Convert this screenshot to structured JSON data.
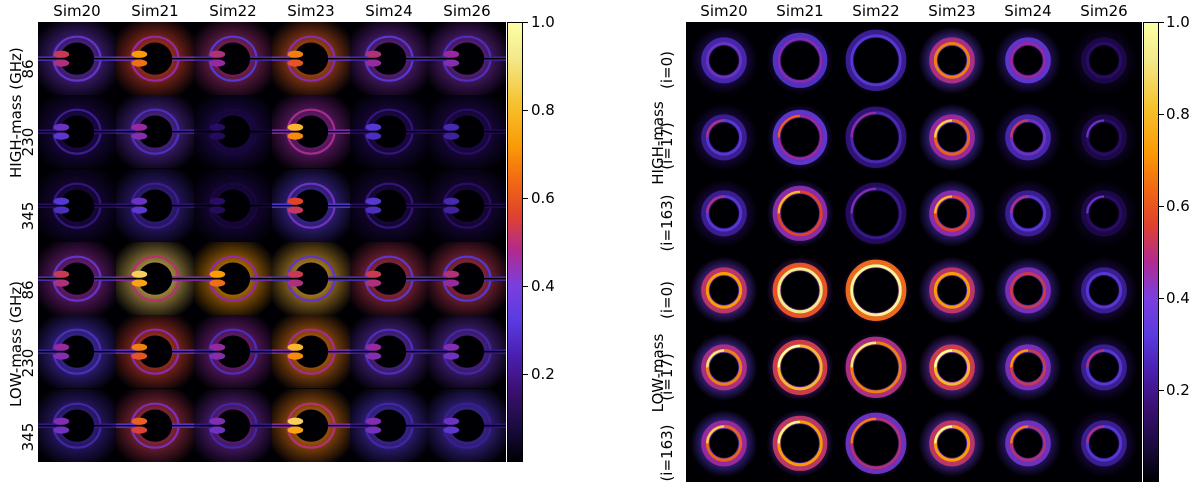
{
  "figure": {
    "left_panel": {
      "columns": [
        "Sim20",
        "Sim21",
        "Sim22",
        "Sim23",
        "Sim24",
        "Sim26"
      ],
      "row_frequencies": [
        "86",
        "230",
        "345",
        "86",
        "230",
        "345"
      ],
      "group_labels": [
        "HIGH-mass (GHz)",
        "LOW-mass (GHz)"
      ],
      "style": "edge-on"
    },
    "right_panel": {
      "columns": [
        "Sim20",
        "Sim21",
        "Sim22",
        "Sim23",
        "Sim24",
        "Sim26"
      ],
      "row_inclinations": [
        "(i=0)",
        "(i=17)",
        "(i=163)",
        "(i=0)",
        "(i=17)",
        "(i=163)"
      ],
      "group_labels": [
        "HIGH-mass",
        "LOW-mass"
      ],
      "style": "rings"
    },
    "colorbar": {
      "ticks": [
        "1.0",
        "0.8",
        "0.6",
        "0.4",
        "0.2"
      ],
      "tick_values": [
        1.0,
        0.8,
        0.6,
        0.4,
        0.2
      ],
      "min": 0.0,
      "max": 1.0
    },
    "colormap": [
      "#000004",
      "#3b0f70",
      "#5a3be0",
      "#b12a90",
      "#e0422e",
      "#fb9b06",
      "#f3e98a",
      "#fcffa4"
    ]
  }
}
